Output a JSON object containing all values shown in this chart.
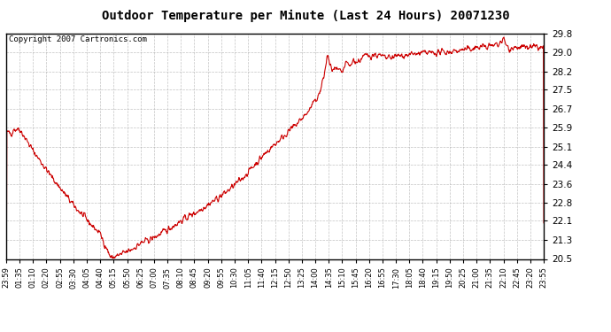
{
  "title": "Outdoor Temperature per Minute (Last 24 Hours) 20071230",
  "copyright": "Copyright 2007 Cartronics.com",
  "line_color": "#cc0000",
  "bg_color": "#ffffff",
  "plot_bg_color": "#ffffff",
  "grid_color": "#aaaaaa",
  "yticks": [
    20.5,
    21.3,
    22.1,
    22.8,
    23.6,
    24.4,
    25.1,
    25.9,
    26.7,
    27.5,
    28.2,
    29.0,
    29.8
  ],
  "ylim": [
    20.5,
    29.8
  ],
  "xtick_labels": [
    "23:59",
    "01:35",
    "01:10",
    "02:20",
    "02:55",
    "03:30",
    "04:05",
    "04:40",
    "05:15",
    "05:50",
    "06:25",
    "07:00",
    "07:35",
    "08:10",
    "08:45",
    "09:20",
    "09:55",
    "10:30",
    "11:05",
    "11:40",
    "12:15",
    "12:50",
    "13:25",
    "14:00",
    "14:35",
    "15:10",
    "15:45",
    "16:20",
    "16:55",
    "17:30",
    "18:05",
    "18:40",
    "19:15",
    "19:50",
    "20:25",
    "21:00",
    "21:35",
    "22:10",
    "22:45",
    "23:20",
    "23:55"
  ],
  "num_points": 1440
}
